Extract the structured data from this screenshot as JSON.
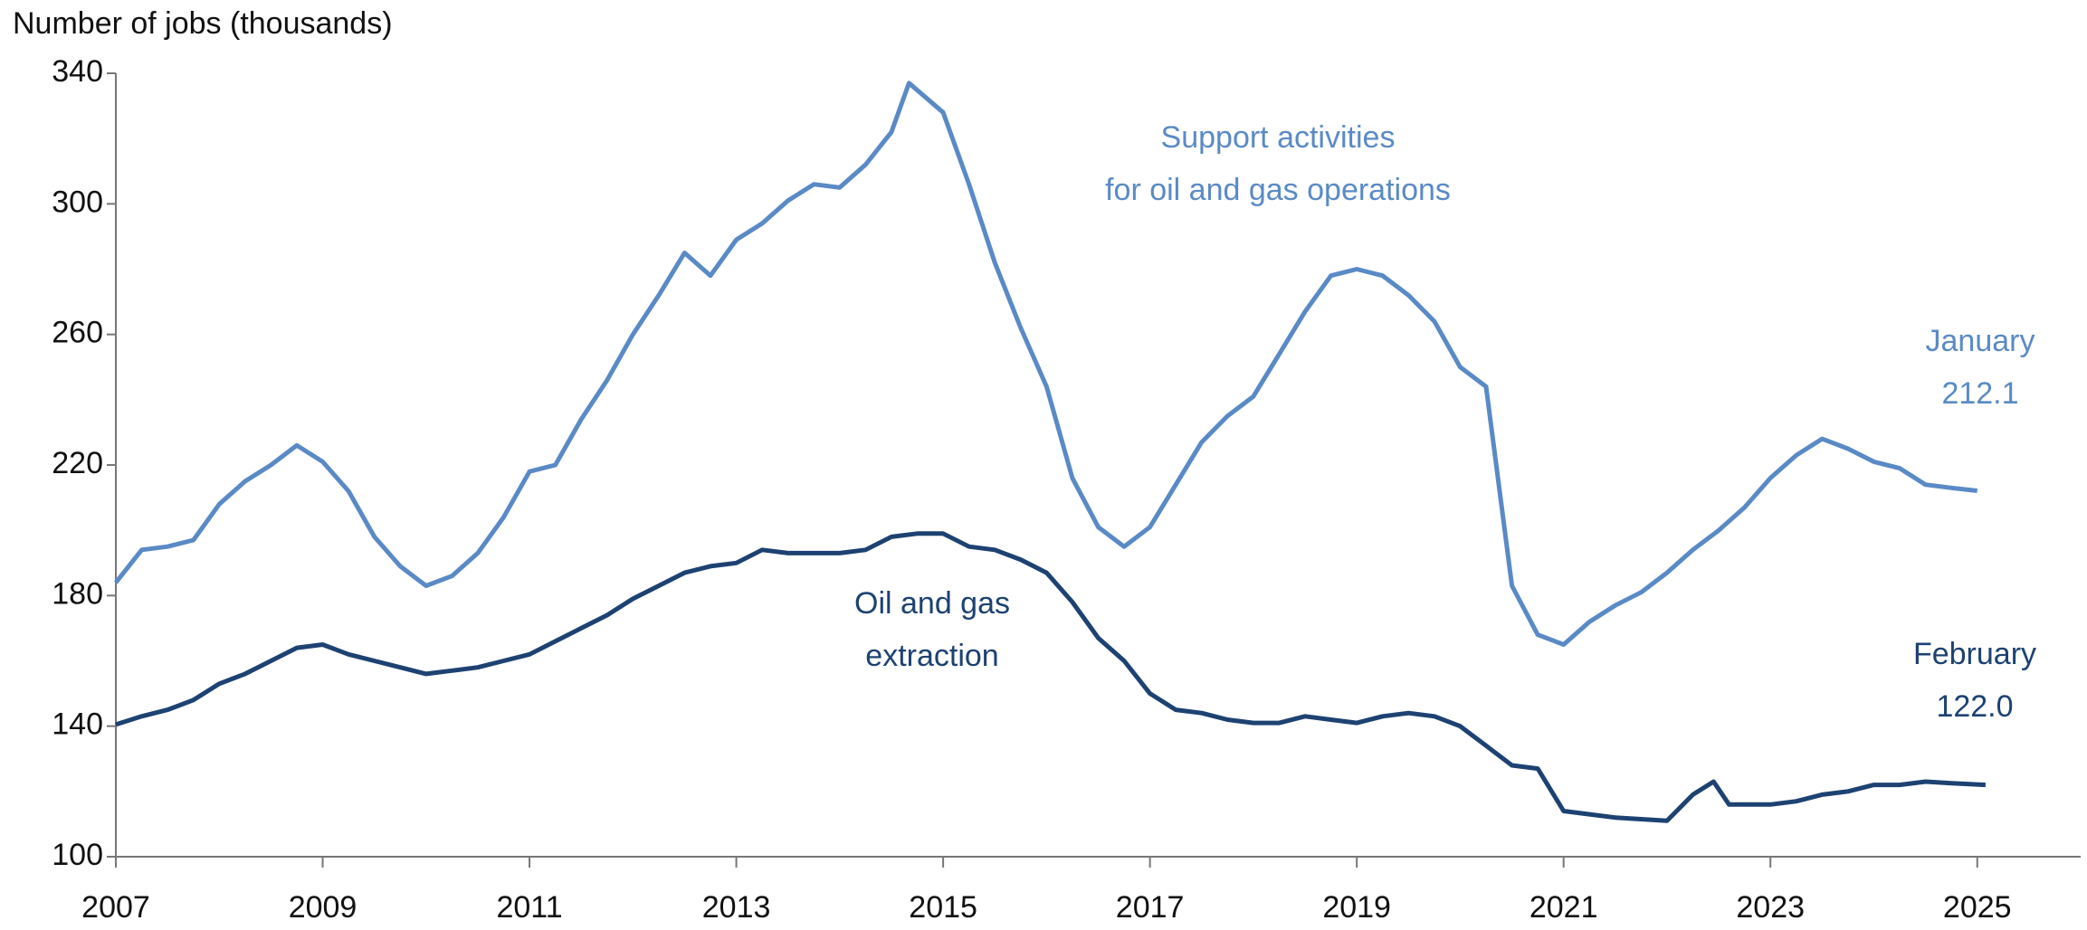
{
  "chart_data": {
    "type": "line",
    "y_label": "Number of jobs (thousands)",
    "xlim": [
      2007,
      2026
    ],
    "xticks": [
      2007,
      2009,
      2011,
      2013,
      2015,
      2017,
      2019,
      2021,
      2023,
      2025
    ],
    "ylim": [
      100,
      340
    ],
    "yticks": [
      100,
      140,
      180,
      220,
      260,
      300,
      340
    ],
    "series": [
      {
        "name": "Support activities for oil and gas operations",
        "color": "#5a8ac6",
        "x": [
          2007,
          2007.25,
          2007.5,
          2007.75,
          2008,
          2008.25,
          2008.5,
          2008.75,
          2009,
          2009.25,
          2009.5,
          2009.75,
          2010,
          2010.25,
          2010.5,
          2010.75,
          2011,
          2011.25,
          2011.5,
          2011.75,
          2012,
          2012.25,
          2012.5,
          2012.75,
          2013,
          2013.25,
          2013.5,
          2013.75,
          2014,
          2014.25,
          2014.5,
          2014.67,
          2015,
          2015.25,
          2015.5,
          2015.75,
          2016,
          2016.25,
          2016.5,
          2016.75,
          2017,
          2017.25,
          2017.5,
          2017.75,
          2018,
          2018.25,
          2018.5,
          2018.75,
          2019,
          2019.25,
          2019.5,
          2019.75,
          2020,
          2020.25,
          2020.5,
          2020.75,
          2021,
          2021.25,
          2021.5,
          2021.75,
          2022,
          2022.25,
          2022.5,
          2022.75,
          2023,
          2023.25,
          2023.5,
          2023.75,
          2024,
          2024.25,
          2024.5,
          2024.75,
          2025
        ],
        "values": [
          184,
          194,
          195,
          197,
          208,
          215,
          220,
          226,
          221,
          212,
          198,
          189,
          183,
          186,
          193,
          204,
          218,
          220,
          234,
          246,
          260,
          272,
          285,
          278,
          289,
          294,
          301,
          306,
          305,
          312,
          322,
          337,
          328,
          306,
          282,
          262,
          244,
          216,
          201,
          195,
          201,
          214,
          227,
          235,
          241,
          254,
          267,
          278,
          280,
          278,
          272,
          264,
          250,
          244,
          183,
          168,
          165,
          172,
          177,
          181,
          187,
          194,
          200,
          207,
          216,
          223,
          228,
          225,
          221,
          219,
          214,
          213,
          212.1
        ]
      },
      {
        "name": "Oil and gas extraction",
        "color": "#1d4272",
        "x": [
          2007,
          2007.25,
          2007.5,
          2007.75,
          2008,
          2008.25,
          2008.5,
          2008.75,
          2009,
          2009.25,
          2009.5,
          2009.75,
          2010,
          2010.25,
          2010.5,
          2010.75,
          2011,
          2011.25,
          2011.5,
          2011.75,
          2012,
          2012.25,
          2012.5,
          2012.75,
          2013,
          2013.25,
          2013.5,
          2013.75,
          2014,
          2014.25,
          2014.5,
          2014.75,
          2015,
          2015.25,
          2015.5,
          2015.75,
          2016,
          2016.25,
          2016.5,
          2016.75,
          2017,
          2017.25,
          2017.5,
          2017.75,
          2018,
          2018.25,
          2018.5,
          2018.75,
          2019,
          2019.25,
          2019.5,
          2019.75,
          2020,
          2020.25,
          2020.5,
          2020.75,
          2021,
          2021.25,
          2021.5,
          2021.75,
          2022,
          2022.25,
          2022.45,
          2022.6,
          2022.75,
          2023,
          2023.25,
          2023.5,
          2023.75,
          2024,
          2024.25,
          2024.5,
          2024.75,
          2025.08
        ],
        "values": [
          140.5,
          143,
          145,
          148,
          153,
          156,
          160,
          164,
          165,
          162,
          160,
          158,
          156,
          157,
          158,
          160,
          162,
          166,
          170,
          174,
          179,
          183,
          187,
          189,
          190,
          194,
          193,
          193,
          193,
          194,
          198,
          199,
          199,
          195,
          194,
          191,
          187,
          178,
          167,
          160,
          150,
          145,
          144,
          142,
          141,
          141,
          143,
          142,
          141,
          143,
          144,
          143,
          140,
          134,
          128,
          127,
          114,
          113,
          112,
          111.5,
          111,
          119,
          123,
          116,
          116,
          116,
          117,
          119,
          120,
          122,
          122,
          123,
          122.5,
          122.0
        ]
      }
    ],
    "annotations": [
      {
        "lines": [
          "Support activities",
          "for oil and gas operations"
        ],
        "color": "#5a8ac6"
      },
      {
        "lines": [
          "Oil and gas",
          "extraction"
        ],
        "color": "#1d4272"
      },
      {
        "lines": [
          "January",
          "212.1"
        ],
        "color": "#5a8ac6"
      },
      {
        "lines": [
          "February",
          "122.0"
        ],
        "color": "#1d4272"
      }
    ]
  }
}
